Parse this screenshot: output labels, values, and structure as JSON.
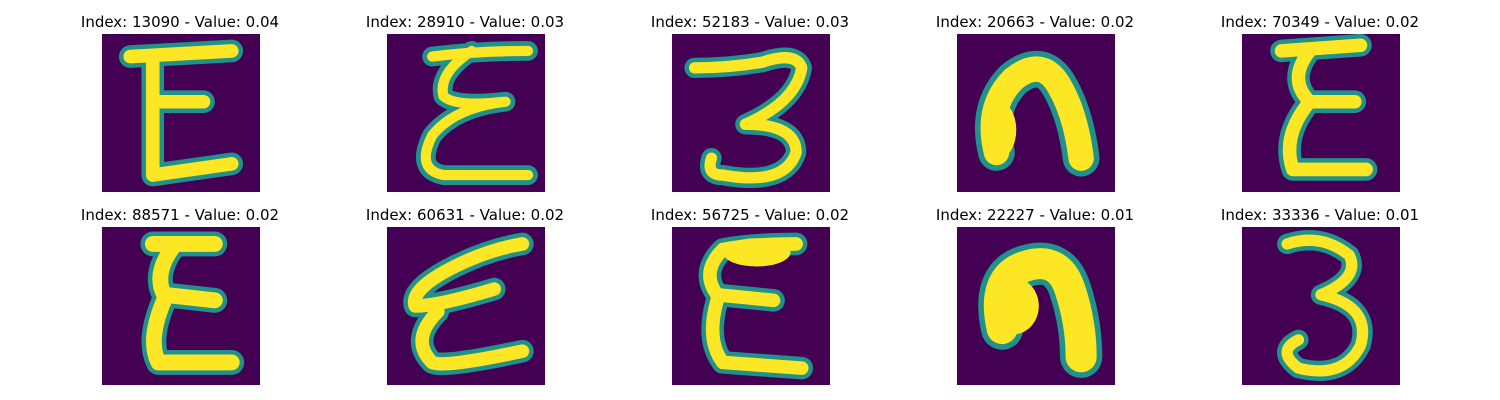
{
  "panels": [
    {
      "title": "Index: 13090 - Value: 0.04",
      "glyph": "E-style strokes (top bar, middle bar, bottom curve)"
    },
    {
      "title": "Index: 28910 - Value: 0.03",
      "glyph": "cursive E with curled strokes"
    },
    {
      "title": "Index: 52183 - Value: 0.03",
      "glyph": "digit-3-like shape"
    },
    {
      "title": "Index: 20663 - Value: 0.02",
      "glyph": "inverted U / arch shape"
    },
    {
      "title": "Index: 70349 - Value: 0.02",
      "glyph": "E-style strokes"
    },
    {
      "title": "Index: 88571 - Value: 0.02",
      "glyph": "E-style strokes"
    },
    {
      "title": "Index: 60631 - Value: 0.02",
      "glyph": "slanted cursive E"
    },
    {
      "title": "Index: 56725 - Value: 0.02",
      "glyph": "E-style strokes"
    },
    {
      "title": "Index: 22227 - Value: 0.01",
      "glyph": "filled arch shape"
    },
    {
      "title": "Index: 33336 - Value: 0.01",
      "glyph": "digit-3 shape"
    }
  ],
  "colors": {
    "background": "#440154",
    "stroke_core": "#fde725",
    "stroke_edge": "#21918c",
    "stroke_mid": "#5ec962"
  }
}
